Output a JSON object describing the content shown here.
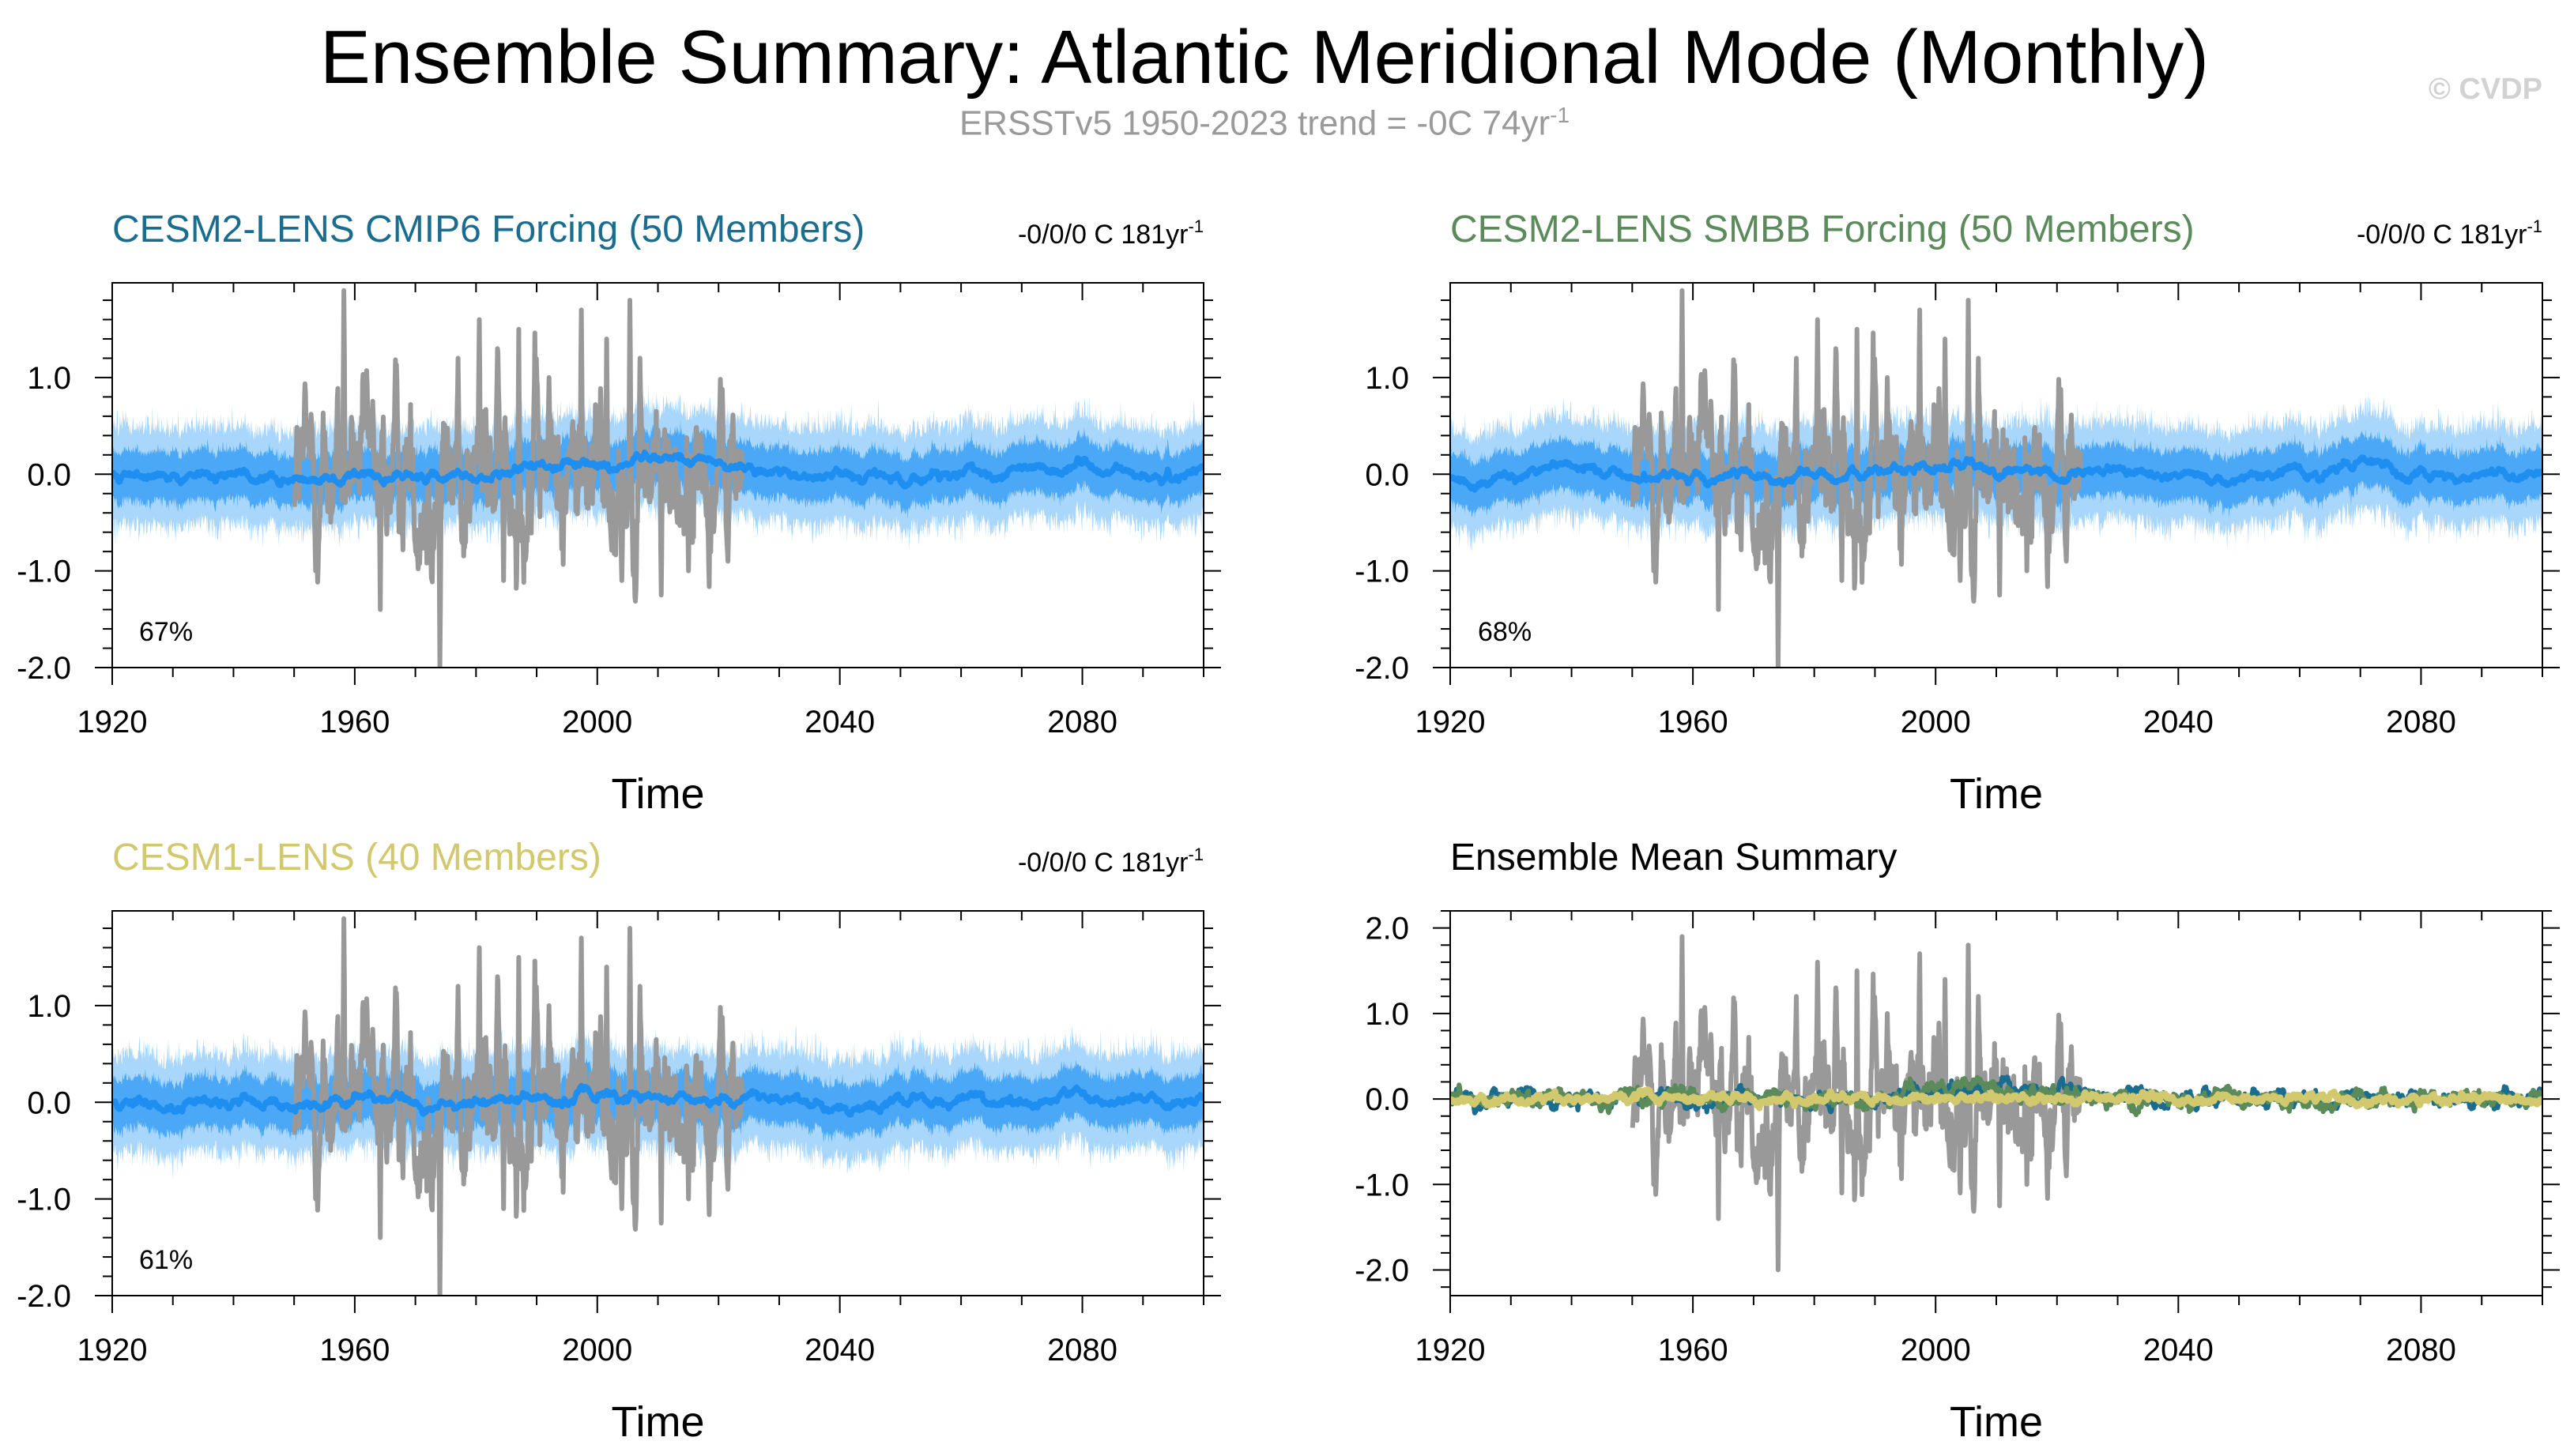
{
  "title": "Ensemble Summary: Atlantic Meridional Mode (Monthly)",
  "subtitle": {
    "text": "ERSSTv5 1950-2023 trend = -0C 74yr",
    "superscript": "-1"
  },
  "watermark": "© CVDP",
  "colors": {
    "observed": "#999999",
    "ensemble_mean": "#1e8ef0",
    "inner_band": "#4aa8f6",
    "outer_band": "#a9d6fb",
    "cesm2_cmip6": "#1a6d8e",
    "cesm2_smbb": "#5b8a5b",
    "cesm1": "#d2c86e"
  },
  "chart_data": [
    {
      "type": "line",
      "panel": "top-left",
      "title": "CESM2-LENS CMIP6 Forcing (50 Members)",
      "title_color": "#1a6d8e",
      "trend_label": {
        "text": "-0/0/0 C 181yr",
        "superscript": "-1"
      },
      "percent_label": "67%",
      "xlabel": "Time",
      "ylabel": "",
      "xlim": [
        1920,
        2100
      ],
      "ylim": [
        -2.0,
        2.0
      ],
      "xticks": [
        1920,
        1960,
        2000,
        2040,
        2080
      ],
      "xtick_labels": [
        "1920",
        "1960",
        "2000",
        "2040",
        "2080"
      ],
      "yticks": [
        -2.0,
        -1.0,
        0.0,
        1.0
      ],
      "ytick_labels": [
        "-2.0",
        "-1.0",
        "0.0",
        "1.0"
      ],
      "series": [
        {
          "name": "ensemble 10-90% range",
          "x_range": [
            1920,
            2100
          ],
          "outer": [
            -0.55,
            0.55
          ],
          "inner": [
            -0.25,
            0.25
          ]
        },
        {
          "name": "ensemble mean",
          "x_range": [
            1920,
            2100
          ],
          "values_hint": "near 0.0, slight rise to ~0.15 around 2000-2020"
        },
        {
          "name": "ERSSTv5 observed",
          "x_range": [
            1950,
            2023
          ],
          "peaks": [
            [
              1958,
              1.9
            ],
            [
              1974,
              -2.0
            ],
            [
              1997,
              1.7
            ],
            [
              2005,
              1.8
            ],
            [
              1964,
              -1.4
            ],
            [
              2010,
              -1.3
            ]
          ]
        }
      ]
    },
    {
      "type": "line",
      "panel": "top-right",
      "title": "CESM2-LENS SMBB Forcing (50 Members)",
      "title_color": "#5b8a5b",
      "trend_label": {
        "text": "-0/0/0 C 181yr",
        "superscript": "-1"
      },
      "percent_label": "68%",
      "xlabel": "Time",
      "ylabel": "",
      "xlim": [
        1920,
        2100
      ],
      "ylim": [
        -2.0,
        2.0
      ],
      "xticks": [
        1920,
        1960,
        2000,
        2040,
        2080
      ],
      "xtick_labels": [
        "1920",
        "1960",
        "2000",
        "2040",
        "2080"
      ],
      "yticks": [
        -2.0,
        -1.0,
        0.0,
        1.0
      ],
      "ytick_labels": [
        "-2.0",
        "-1.0",
        "0.0",
        "1.0"
      ],
      "series": [
        {
          "name": "ensemble 10-90% range",
          "x_range": [
            1920,
            2100
          ],
          "outer": [
            -0.55,
            0.55
          ],
          "inner": [
            -0.25,
            0.25
          ]
        },
        {
          "name": "ensemble mean",
          "x_range": [
            1920,
            2100
          ],
          "values_hint": "near 0.0"
        },
        {
          "name": "ERSSTv5 observed",
          "x_range": [
            1950,
            2023
          ],
          "peaks": [
            [
              1958,
              1.9
            ],
            [
              1974,
              -2.0
            ],
            [
              1997,
              1.7
            ],
            [
              2005,
              1.8
            ]
          ]
        }
      ]
    },
    {
      "type": "line",
      "panel": "bottom-left",
      "title": "CESM1-LENS (40 Members)",
      "title_color": "#d2c86e",
      "trend_label": {
        "text": "-0/0/0 C 181yr",
        "superscript": "-1"
      },
      "percent_label": "61%",
      "xlabel": "Time",
      "ylabel": "",
      "xlim": [
        1920,
        2100
      ],
      "ylim": [
        -2.0,
        2.0
      ],
      "xticks": [
        1920,
        1960,
        2000,
        2040,
        2080
      ],
      "xtick_labels": [
        "1920",
        "1960",
        "2000",
        "2040",
        "2080"
      ],
      "yticks": [
        -2.0,
        -1.0,
        0.0,
        1.0
      ],
      "ytick_labels": [
        "-2.0",
        "-1.0",
        "0.0",
        "1.0"
      ],
      "series": [
        {
          "name": "ensemble 10-90% range",
          "x_range": [
            1920,
            2100
          ],
          "outer": [
            -0.55,
            0.55
          ],
          "inner": [
            -0.25,
            0.25
          ]
        },
        {
          "name": "ensemble mean",
          "x_range": [
            1920,
            2100
          ],
          "values_hint": "near 0.0"
        },
        {
          "name": "ERSSTv5 observed",
          "x_range": [
            1950,
            2023
          ],
          "peaks": [
            [
              1958,
              1.9
            ],
            [
              1974,
              -2.0
            ],
            [
              1997,
              1.7
            ],
            [
              2005,
              1.8
            ]
          ]
        }
      ]
    },
    {
      "type": "line",
      "panel": "bottom-right",
      "title": "Ensemble Mean Summary",
      "title_color": "#000000",
      "xlabel": "Time",
      "ylabel": "",
      "xlim": [
        1920,
        2100
      ],
      "ylim": [
        -2.2,
        2.2
      ],
      "xticks": [
        1920,
        1960,
        2000,
        2040,
        2080
      ],
      "xtick_labels": [
        "1920",
        "1960",
        "2000",
        "2040",
        "2080"
      ],
      "yticks": [
        -2.0,
        -1.0,
        0.0,
        1.0,
        2.0
      ],
      "ytick_labels": [
        "-2.0",
        "-1.0",
        "0.0",
        "1.0",
        "2.0"
      ],
      "series": [
        {
          "name": "ERSSTv5 observed",
          "x_range": [
            1950,
            2023
          ]
        },
        {
          "name": "CESM2-LENS CMIP6 ensemble mean",
          "x_range": [
            1920,
            2100
          ]
        },
        {
          "name": "CESM2-LENS SMBB ensemble mean",
          "x_range": [
            1920,
            2100
          ]
        },
        {
          "name": "CESM1-LENS ensemble mean",
          "x_range": [
            1920,
            2100
          ]
        }
      ]
    }
  ]
}
